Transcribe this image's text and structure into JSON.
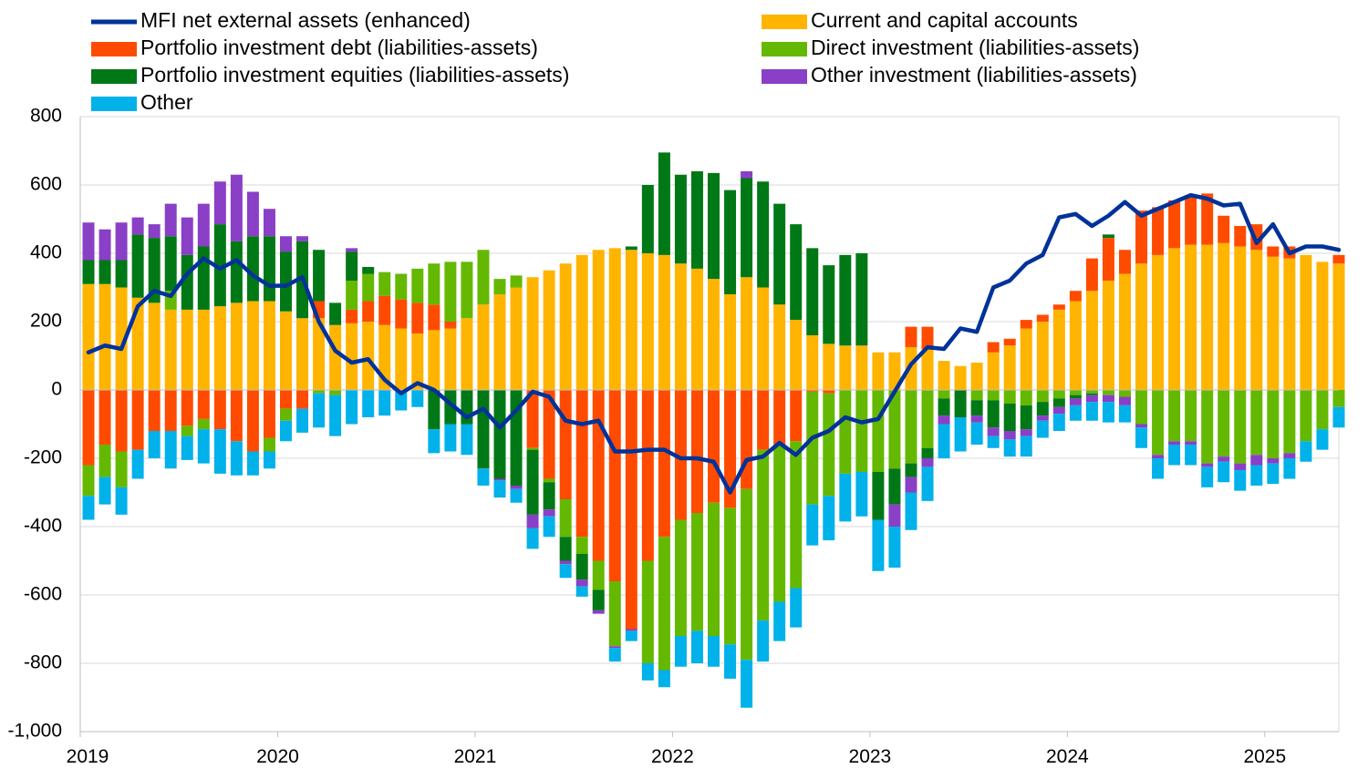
{
  "chart_data": {
    "type": "bar",
    "stacked": true,
    "title": "",
    "xlabel": "",
    "ylabel": "",
    "ylim": [
      -1000,
      800
    ],
    "y_ticks": [
      800,
      600,
      400,
      200,
      0,
      -200,
      -400,
      -600,
      -800,
      -1000
    ],
    "y_tick_labels": [
      "800",
      "600",
      "400",
      "200",
      "0",
      "-200",
      "-400",
      "-600",
      "-800",
      "-1,000"
    ],
    "x_tick_labels": [
      "2019",
      "2020",
      "2021",
      "2022",
      "2023",
      "2024",
      "2025"
    ],
    "legend_position": "top",
    "grid": true,
    "months": [
      "2019-01",
      "2019-02",
      "2019-03",
      "2019-04",
      "2019-05",
      "2019-06",
      "2019-07",
      "2019-08",
      "2019-09",
      "2019-10",
      "2019-11",
      "2019-12",
      "2020-01",
      "2020-02",
      "2020-03",
      "2020-04",
      "2020-05",
      "2020-06",
      "2020-07",
      "2020-08",
      "2020-09",
      "2020-10",
      "2020-11",
      "2020-12",
      "2021-01",
      "2021-02",
      "2021-03",
      "2021-04",
      "2021-05",
      "2021-06",
      "2021-07",
      "2021-08",
      "2021-09",
      "2021-10",
      "2021-11",
      "2021-12",
      "2022-01",
      "2022-02",
      "2022-03",
      "2022-04",
      "2022-05",
      "2022-06",
      "2022-07",
      "2022-08",
      "2022-09",
      "2022-10",
      "2022-11",
      "2022-12",
      "2023-01",
      "2023-02",
      "2023-03",
      "2023-04",
      "2023-05",
      "2023-06",
      "2023-07",
      "2023-08",
      "2023-09",
      "2023-10",
      "2023-11",
      "2023-12",
      "2024-01",
      "2024-02",
      "2024-03",
      "2024-04",
      "2024-05",
      "2024-06",
      "2024-07",
      "2024-08",
      "2024-09",
      "2024-10",
      "2024-11",
      "2024-12",
      "2025-01",
      "2025-02",
      "2025-03",
      "2025-04",
      "2025-05"
    ],
    "series": [
      {
        "name": "Current and capital accounts",
        "color": "#FFB400",
        "kind": "bar",
        "values": [
          310,
          310,
          300,
          270,
          255,
          235,
          235,
          235,
          245,
          255,
          260,
          260,
          230,
          210,
          210,
          190,
          195,
          200,
          190,
          180,
          165,
          175,
          180,
          210,
          250,
          280,
          300,
          330,
          350,
          370,
          395,
          410,
          415,
          410,
          400,
          395,
          370,
          355,
          325,
          280,
          330,
          300,
          250,
          205,
          160,
          135,
          130,
          130,
          110,
          110,
          125,
          120,
          85,
          70,
          80,
          110,
          130,
          180,
          200,
          235,
          260,
          290,
          320,
          340,
          370,
          395,
          415,
          425,
          425,
          430,
          420,
          410,
          390,
          385,
          395,
          375,
          370
        ]
      },
      {
        "name": "Portfolio investment debt (liabilities-assets)",
        "color": "#FF4B00",
        "kind": "bar",
        "values": [
          -220,
          -160,
          -180,
          -175,
          -120,
          -120,
          -105,
          -85,
          -115,
          -150,
          -180,
          -140,
          -55,
          -55,
          50,
          0,
          40,
          60,
          85,
          85,
          90,
          75,
          20,
          0,
          0,
          0,
          0,
          -170,
          -260,
          -320,
          -430,
          -500,
          -560,
          -700,
          -500,
          -430,
          -380,
          -360,
          -330,
          -345,
          -290,
          -175,
          -160,
          -150,
          -5,
          -10,
          0,
          0,
          0,
          0,
          60,
          65,
          0,
          0,
          0,
          30,
          20,
          25,
          20,
          15,
          30,
          95,
          125,
          70,
          155,
          140,
          140,
          145,
          150,
          80,
          60,
          75,
          30,
          35,
          0,
          0,
          25
        ]
      },
      {
        "name": "Direct investment (liabilities-assets)",
        "color": "#65B800",
        "kind": "bar",
        "values": [
          -90,
          -95,
          -105,
          0,
          0,
          55,
          -30,
          -30,
          0,
          0,
          0,
          -40,
          -35,
          0,
          -10,
          -15,
          85,
          80,
          70,
          75,
          100,
          120,
          175,
          165,
          160,
          45,
          35,
          -5,
          -10,
          -110,
          -50,
          -85,
          -190,
          0,
          -300,
          -390,
          -340,
          -345,
          -390,
          -400,
          -500,
          -500,
          -460,
          -430,
          -330,
          -300,
          -245,
          -240,
          -240,
          -230,
          -215,
          -170,
          -25,
          0,
          -30,
          -30,
          -40,
          -45,
          -35,
          -25,
          -15,
          -10,
          -15,
          -20,
          -100,
          -190,
          -150,
          -150,
          -215,
          -195,
          -215,
          -190,
          -200,
          -185,
          -150,
          -115,
          -50
        ]
      },
      {
        "name": "Portfolio investment equities (liabilities-assets)",
        "color": "#007816",
        "kind": "bar",
        "values": [
          70,
          70,
          80,
          185,
          190,
          160,
          160,
          185,
          240,
          180,
          190,
          190,
          175,
          225,
          150,
          65,
          85,
          20,
          0,
          0,
          0,
          -115,
          -100,
          -100,
          -230,
          -260,
          -280,
          -190,
          -80,
          -70,
          -75,
          -60,
          0,
          10,
          200,
          300,
          260,
          285,
          310,
          305,
          290,
          310,
          295,
          280,
          255,
          230,
          265,
          270,
          -140,
          -105,
          -40,
          -30,
          -50,
          -80,
          -45,
          -80,
          -80,
          -70,
          -40,
          -25,
          -10,
          -5,
          10,
          0,
          0,
          0,
          0,
          0,
          0,
          0,
          0,
          0,
          0,
          0,
          0,
          0,
          0
        ]
      },
      {
        "name": "Other investment (liabilities-assets)",
        "color": "#8A3FC7",
        "kind": "bar",
        "values": [
          110,
          90,
          110,
          50,
          40,
          95,
          110,
          125,
          125,
          195,
          130,
          80,
          45,
          15,
          0,
          0,
          10,
          0,
          0,
          0,
          0,
          0,
          0,
          0,
          0,
          -5,
          -10,
          -40,
          -20,
          -10,
          -20,
          -10,
          -5,
          -5,
          0,
          0,
          0,
          0,
          0,
          0,
          20,
          0,
          0,
          0,
          0,
          0,
          0,
          0,
          0,
          -65,
          -45,
          -25,
          -25,
          0,
          -20,
          -25,
          -25,
          -20,
          -15,
          -20,
          -20,
          -20,
          -20,
          -25,
          -10,
          -10,
          -10,
          -10,
          -10,
          -15,
          -20,
          -30,
          -15,
          -15,
          0,
          0,
          0
        ]
      },
      {
        "name": "Other",
        "color": "#00B1EA",
        "kind": "bar",
        "values": [
          -70,
          -80,
          -80,
          -85,
          -80,
          -110,
          -70,
          -100,
          -130,
          -100,
          -70,
          -50,
          -60,
          -70,
          -100,
          -120,
          -100,
          -80,
          -75,
          -60,
          -50,
          -70,
          -80,
          -90,
          -50,
          -50,
          -40,
          -60,
          -60,
          -40,
          -30,
          0,
          -40,
          -30,
          -50,
          -50,
          -90,
          -95,
          -90,
          -100,
          -140,
          -120,
          -115,
          -115,
          -120,
          -130,
          -140,
          -130,
          -150,
          -120,
          -110,
          -100,
          -100,
          -100,
          -65,
          -35,
          -50,
          -60,
          -50,
          -50,
          -45,
          -55,
          -60,
          -50,
          -60,
          -60,
          -60,
          -60,
          -60,
          -60,
          -60,
          -60,
          -60,
          -60,
          -60,
          -60,
          -60
        ]
      },
      {
        "name": "MFI net external assets (enhanced)",
        "color": "#003299",
        "kind": "line",
        "values": [
          110,
          130,
          120,
          245,
          290,
          275,
          340,
          385,
          355,
          380,
          335,
          305,
          305,
          330,
          200,
          115,
          80,
          90,
          30,
          -10,
          20,
          0,
          -40,
          -80,
          -55,
          -110,
          -60,
          -5,
          -20,
          -90,
          -100,
          -90,
          -180,
          -180,
          -175,
          -175,
          -200,
          -200,
          -210,
          -300,
          -205,
          -195,
          -155,
          -190,
          -140,
          -120,
          -80,
          -95,
          -85,
          -5,
          75,
          125,
          120,
          180,
          170,
          300,
          320,
          370,
          395,
          505,
          515,
          480,
          510,
          550,
          510,
          530,
          550,
          570,
          560,
          540,
          545,
          430,
          485,
          400,
          420,
          420,
          410
        ]
      }
    ]
  }
}
